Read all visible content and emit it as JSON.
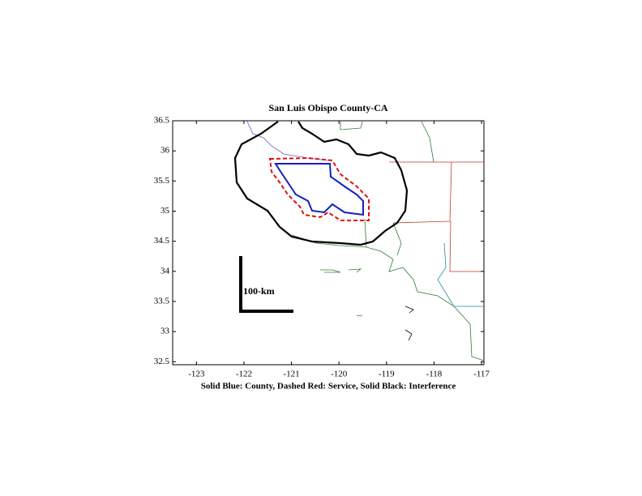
{
  "map": {
    "title": "San Luis Obispo County-CA",
    "xlabel": "Solid Blue: County, Dashed Red: Service, Solid Black: Interference",
    "scale_label": "100-km",
    "xlim": [
      -123.5,
      -116.95
    ],
    "ylim": [
      32.45,
      36.5
    ],
    "xticks": [
      -123,
      -122,
      -121,
      -120,
      -119,
      -118,
      -117
    ],
    "yticks": [
      32.5,
      33,
      33.5,
      34,
      34.5,
      35,
      35.5,
      36,
      36.5
    ]
  }
}
